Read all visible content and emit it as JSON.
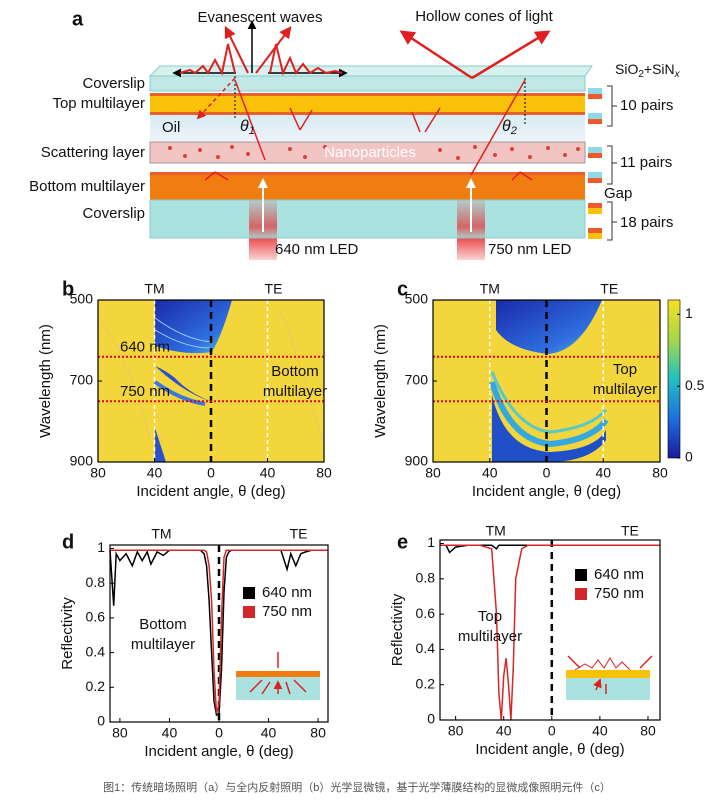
{
  "diagram": {
    "label": "a",
    "evanescent": "Evanescent waves",
    "hollow": "Hollow cones of light",
    "coverslip_top": "Coverslip",
    "top_multilayer": "Top multilayer",
    "oil": "Oil",
    "theta1": {
      "symbol": "θ",
      "sub": "1"
    },
    "theta2": {
      "symbol": "θ",
      "sub": "2"
    },
    "scattering": "Scattering layer",
    "nanoparticles": "Nanoparticles",
    "bottom_multilayer": "Bottom multilayer",
    "coverslip_bottom": "Coverslip",
    "led1": "640 nm LED",
    "led2": "750 nm LED",
    "material": {
      "a": "SiO",
      "a_sub": "2",
      "b": "+SiN",
      "b_sub": "x"
    },
    "pairs_top": "10 pairs",
    "pairs_mid": "11 pairs",
    "gap": "Gap",
    "pairs_bottom": "18 pairs"
  },
  "chart_data": [
    {
      "type": "heatmap",
      "panel": "b",
      "xlabel": "Incident angle, θ (deg)",
      "ylabel": "Wavelength (nm)",
      "xlim": [
        -80,
        80
      ],
      "ylim": [
        900,
        500
      ],
      "xticks": [
        {
          "value": -80,
          "label": "80"
        },
        {
          "value": -40,
          "label": "40"
        },
        0,
        40,
        80
      ],
      "yticks": [
        500,
        700,
        900
      ],
      "guides": [
        {
          "x": -40,
          "color": "#ffffff"
        },
        {
          "x": 0,
          "color": "#000000"
        },
        {
          "x": 40,
          "color": "#ffffff"
        }
      ],
      "hlines": [
        {
          "y": 640,
          "label": "640 nm",
          "color": "#e3001b"
        },
        {
          "y": 750,
          "label": "750 nm",
          "color": "#e3001b"
        }
      ],
      "left_label": "TM",
      "right_label": "TE",
      "note": [
        "Bottom",
        "multilayer"
      ]
    },
    {
      "type": "heatmap",
      "panel": "c",
      "xlabel": "Incident angle, θ (deg)",
      "ylabel": "Wavelength (nm)",
      "xlim": [
        -80,
        80
      ],
      "ylim": [
        900,
        500
      ],
      "xticks": [
        {
          "value": -80,
          "label": "80"
        },
        {
          "value": -40,
          "label": "40"
        },
        0,
        40,
        80
      ],
      "yticks": [
        500,
        700,
        900
      ],
      "guides": [
        {
          "x": -40,
          "color": "#ffffff"
        },
        {
          "x": 0,
          "color": "#000000"
        },
        {
          "x": 40,
          "color": "#ffffff"
        }
      ],
      "hlines": [
        {
          "y": 640,
          "color": "#e3001b"
        },
        {
          "y": 750,
          "color": "#e3001b"
        }
      ],
      "left_label": "TM",
      "right_label": "TE",
      "note": [
        "Top",
        "multilayer"
      ],
      "colorbar": {
        "clim": [
          0,
          1.1
        ],
        "ticks": [
          0,
          0.5,
          1
        ]
      }
    },
    {
      "type": "line",
      "panel": "d",
      "xlabel": "Incident angle, θ (deg)",
      "ylabel": "Reflectivity",
      "xlim": [
        -88,
        88
      ],
      "ylim": [
        0,
        1.02
      ],
      "xticks": [
        {
          "value": -80,
          "label": "80"
        },
        {
          "value": -40,
          "label": "40"
        },
        0,
        40,
        80
      ],
      "yticks": [
        0,
        0.2,
        0.4,
        0.6,
        0.8,
        1
      ],
      "guides": [
        {
          "x": 0,
          "color": "#000000"
        }
      ],
      "legend": "center right",
      "left_label": "TM",
      "right_label": "TE",
      "note": [
        "Bottom",
        "multilayer"
      ],
      "x": [
        -88,
        -85,
        -83,
        -80,
        -75,
        -70,
        -66,
        -62,
        -58,
        -55,
        -50,
        -45,
        -40,
        -30,
        -20,
        -15,
        -12,
        -10,
        -8,
        -6,
        -4,
        -2,
        0,
        2,
        4,
        6,
        8,
        10,
        15,
        20,
        30,
        40,
        50,
        55,
        58,
        62,
        66,
        70,
        75,
        80,
        88
      ],
      "series": [
        {
          "name": "640 nm",
          "color": "#000000",
          "values": [
            0.99,
            0.67,
            0.97,
            0.93,
            0.97,
            0.9,
            0.98,
            0.93,
            0.98,
            0.91,
            0.98,
            0.96,
            0.99,
            0.99,
            0.99,
            0.99,
            0.97,
            0.9,
            0.7,
            0.4,
            0.12,
            0.04,
            0.05,
            0.3,
            0.75,
            0.95,
            0.98,
            0.99,
            0.99,
            0.99,
            0.99,
            0.99,
            0.99,
            0.88,
            0.97,
            0.9,
            0.97,
            0.98,
            0.99,
            0.99,
            0.99
          ]
        },
        {
          "name": "750 nm",
          "color": "#d62728",
          "values": [
            0.99,
            0.99,
            0.99,
            0.99,
            0.99,
            0.99,
            0.99,
            0.99,
            0.99,
            0.99,
            0.99,
            0.99,
            0.99,
            0.99,
            0.99,
            0.99,
            0.99,
            0.98,
            0.9,
            0.7,
            0.3,
            0.05,
            0.1,
            0.6,
            0.95,
            0.99,
            0.99,
            0.99,
            0.99,
            0.99,
            0.99,
            0.99,
            0.99,
            0.99,
            0.99,
            0.99,
            0.99,
            0.99,
            0.99,
            0.99,
            0.99
          ]
        }
      ]
    },
    {
      "type": "line",
      "panel": "e",
      "xlabel": "Incident angle, θ (deg)",
      "ylabel": "Reflectivity",
      "xlim": [
        -93,
        90
      ],
      "ylim": [
        0,
        1.02
      ],
      "xticks": [
        {
          "value": -80,
          "label": "80"
        },
        {
          "value": -40,
          "label": "40"
        },
        0,
        40,
        80
      ],
      "yticks": [
        0,
        0.2,
        0.4,
        0.6,
        0.8,
        1
      ],
      "guides": [
        {
          "x": 0,
          "color": "#000000"
        }
      ],
      "legend": "center right",
      "left_label": "TM",
      "right_label": "TE",
      "note": [
        "Top",
        "multilayer"
      ],
      "x": [
        -93,
        -88,
        -85,
        -80,
        -70,
        -60,
        -50,
        -46,
        -44,
        -42,
        -40,
        -38,
        -36,
        -34,
        -32,
        -30,
        -25,
        -20,
        -10,
        0,
        10,
        20,
        40,
        60,
        80,
        90
      ],
      "series": [
        {
          "name": "640 nm",
          "color": "#000000",
          "values": [
            0.99,
            0.99,
            0.95,
            0.98,
            0.99,
            0.99,
            0.99,
            0.97,
            0.99,
            0.99,
            0.99,
            0.99,
            0.99,
            0.99,
            0.99,
            0.99,
            0.99,
            0.99,
            0.99,
            0.99,
            0.99,
            0.99,
            0.99,
            0.99,
            0.99,
            0.99
          ]
        },
        {
          "name": "750 nm",
          "color": "#d62728",
          "values": [
            0.99,
            0.99,
            0.99,
            0.99,
            0.99,
            0.99,
            0.97,
            0.6,
            0.15,
            0,
            0.25,
            0.35,
            0.2,
            0,
            0.3,
            0.8,
            0.97,
            0.99,
            0.99,
            0.99,
            0.99,
            0.99,
            0.99,
            0.99,
            0.99,
            0.99
          ]
        }
      ]
    }
  ],
  "caption": "图1：传统暗场照明（a）与全内反射照明（b）光学显微镜，基于光学薄膜结构的显微成像照明元件（c）"
}
